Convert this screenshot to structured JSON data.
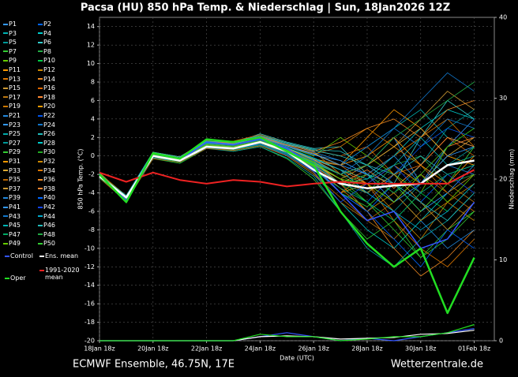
{
  "chart_data": {
    "type": "line",
    "title": "Pacsa  (HU)  850 hPa Temp. & Niederschlag | Sun, 18Jan2026 12Z",
    "ylabel": "850 hPa Temp. (°C)",
    "y2label": "Niederschlag (mm)",
    "xlabel": "Date (UTC)",
    "footer_left": "ECMWF Ensemble, 46.75N, 17E",
    "footer_right": "Wetterzentrale.de",
    "grid": true,
    "xlim": [
      0,
      354
    ],
    "ylim": [
      -20,
      15
    ],
    "y2lim": [
      0,
      40
    ],
    "xticks": [
      {
        "value": 0,
        "label": "18Jan 18z"
      },
      {
        "value": 48,
        "label": "20Jan 18z"
      },
      {
        "value": 96,
        "label": "22Jan 18z"
      },
      {
        "value": 144,
        "label": "24Jan 18z"
      },
      {
        "value": 192,
        "label": "26Jan 18z"
      },
      {
        "value": 240,
        "label": "28Jan 18z"
      },
      {
        "value": 288,
        "label": "30Jan 18z"
      },
      {
        "value": 336,
        "label": "01Feb 18z"
      }
    ],
    "yticks": [
      -20,
      -18,
      -16,
      -14,
      -12,
      -10,
      -8,
      -6,
      -4,
      -2,
      0,
      2,
      4,
      6,
      8,
      10,
      12,
      14
    ],
    "y2ticks": [
      0,
      10,
      20,
      30,
      40
    ],
    "x": [
      0,
      24,
      48,
      72,
      96,
      120,
      144,
      168,
      192,
      216,
      240,
      264,
      288,
      312,
      336
    ],
    "series": [
      {
        "name": "P1",
        "color": "#3399ff",
        "values": [
          -2.1,
          -4.4,
          0.2,
          -0.3,
          1.4,
          1.2,
          1.8,
          0.9,
          -0.5,
          -2,
          -1,
          2,
          -3,
          1,
          4
        ]
      },
      {
        "name": "P2",
        "color": "#0066ff",
        "values": [
          -1.9,
          -4.7,
          -0.2,
          -0.6,
          1.0,
          0.8,
          1.4,
          0.4,
          -1.2,
          -4,
          -6,
          -3,
          -5,
          -2,
          -1
        ]
      },
      {
        "name": "P3",
        "color": "#00b3b3",
        "values": [
          -2.3,
          -4.9,
          0.1,
          -0.2,
          1.6,
          1.3,
          2.2,
          1.1,
          0.2,
          -1,
          1,
          3,
          5,
          2,
          1
        ]
      },
      {
        "name": "P4",
        "color": "#00cccc",
        "values": [
          -2.0,
          -4.3,
          0.4,
          -0.4,
          1.1,
          0.6,
          1.2,
          0,
          -2,
          -5,
          -8,
          -10,
          -7,
          -4,
          -2
        ]
      },
      {
        "name": "P5",
        "color": "#009999",
        "values": [
          -2.2,
          -4.6,
          -0.1,
          -0.5,
          1.3,
          1.1,
          1.7,
          0.7,
          -1,
          -3,
          -2,
          -4,
          -1,
          3,
          5
        ]
      },
      {
        "name": "P6",
        "color": "#33cccc",
        "values": [
          -2.4,
          -4.8,
          0.3,
          -0.1,
          1.5,
          1.4,
          2.4,
          1.5,
          0.8,
          1,
          -2,
          -3,
          2,
          6,
          4
        ]
      },
      {
        "name": "P7",
        "color": "#33cc33",
        "values": [
          -1.8,
          -4.5,
          0,
          -0.7,
          0.9,
          0.5,
          1.0,
          -0.3,
          -2.5,
          -6,
          -9,
          -7,
          -11,
          -8,
          -6
        ]
      },
      {
        "name": "P8",
        "color": "#22aa44",
        "values": [
          -2.1,
          -4.4,
          0.2,
          -0.3,
          1.2,
          0.9,
          1.5,
          0.6,
          -0.8,
          -2,
          -4,
          -1,
          0,
          -3,
          -2
        ]
      },
      {
        "name": "P9",
        "color": "#66cc00",
        "values": [
          -2.0,
          -4.6,
          0.1,
          -0.4,
          1.4,
          1.2,
          1.9,
          1.0,
          0,
          2,
          0,
          -2,
          -4,
          1,
          3
        ]
      },
      {
        "name": "P10",
        "color": "#00cc44",
        "values": [
          -2.2,
          -4.9,
          -0.3,
          -0.8,
          0.8,
          0.7,
          1.3,
          0.2,
          -1.5,
          -3,
          -5,
          -7,
          -4,
          -6,
          -3
        ]
      },
      {
        "name": "P11",
        "color": "#ff9900",
        "values": [
          -2.3,
          -4.7,
          0,
          -0.5,
          1.2,
          1.0,
          1.6,
          0.8,
          -0.3,
          -1,
          2,
          5,
          3,
          0,
          -1
        ]
      },
      {
        "name": "P12",
        "color": "#cc8800",
        "values": [
          -1.9,
          -4.3,
          0.3,
          -0.2,
          1.6,
          1.5,
          2.0,
          1.2,
          0.5,
          -2,
          -3,
          -6,
          -9,
          -5,
          -7
        ]
      },
      {
        "name": "P13",
        "color": "#dd7700",
        "values": [
          -2.1,
          -4.5,
          0.1,
          -0.6,
          1.0,
          0.8,
          1.4,
          0.3,
          -1.2,
          -4,
          -2,
          0,
          2,
          4,
          1
        ]
      },
      {
        "name": "P14",
        "color": "#ee8822",
        "values": [
          -2.0,
          -4.8,
          0.2,
          -0.3,
          1.3,
          1.1,
          1.7,
          0.6,
          -0.6,
          -3,
          -6,
          -10,
          -13,
          -11,
          -8
        ]
      },
      {
        "name": "P15",
        "color": "#cc9933",
        "values": [
          -2.2,
          -4.6,
          -0.2,
          -0.5,
          1.1,
          0.9,
          1.5,
          0.5,
          -1,
          -2.5,
          -1,
          1,
          4,
          7,
          5
        ]
      },
      {
        "name": "P16",
        "color": "#dd6600",
        "values": [
          -2.4,
          -4.4,
          0.4,
          -0.1,
          1.7,
          1.6,
          2.3,
          1.4,
          0.6,
          0,
          1,
          -2,
          -1,
          2,
          0
        ]
      },
      {
        "name": "P17",
        "color": "#bb7711",
        "values": [
          -1.8,
          -4.9,
          0,
          -0.6,
          1.0,
          0.6,
          1.1,
          0.1,
          -1.8,
          -5,
          -7,
          -9,
          -6,
          -3,
          -5
        ]
      },
      {
        "name": "P18",
        "color": "#ff8833",
        "values": [
          -2.1,
          -4.5,
          0.2,
          -0.4,
          1.3,
          1.2,
          1.8,
          0.8,
          -0.4,
          -1.5,
          -3,
          -5,
          -2,
          1,
          2
        ]
      },
      {
        "name": "P19",
        "color": "#cc7700",
        "values": [
          -2.0,
          -4.7,
          0.1,
          -0.3,
          1.4,
          1.3,
          2.0,
          1.0,
          0.2,
          1,
          3,
          1,
          -1,
          -4,
          -2
        ]
      },
      {
        "name": "P20",
        "color": "#ee9900",
        "values": [
          -2.3,
          -4.6,
          -0.1,
          -0.5,
          1.1,
          0.8,
          1.3,
          0.2,
          -1.3,
          -4,
          -3,
          -1,
          -3,
          0,
          -1
        ]
      },
      {
        "name": "P21",
        "color": "#2288dd",
        "values": [
          -2.2,
          -4.4,
          0.3,
          -0.2,
          1.5,
          1.4,
          2.1,
          1.3,
          0.4,
          -0.5,
          -2,
          -4,
          -7,
          -10,
          -8
        ]
      },
      {
        "name": "P22",
        "color": "#0055ee",
        "values": [
          -1.9,
          -4.8,
          0,
          -0.6,
          0.9,
          0.7,
          1.2,
          0.1,
          -1.6,
          -3.5,
          -5,
          -2,
          1,
          3,
          2
        ]
      },
      {
        "name": "P23",
        "color": "#3399ff",
        "values": [
          -2.1,
          -4.5,
          0.2,
          -0.4,
          1.2,
          1.0,
          1.6,
          0.6,
          -0.7,
          -2,
          -1,
          -3,
          -6,
          -4,
          -1
        ]
      },
      {
        "name": "P24",
        "color": "#1177cc",
        "values": [
          -2.0,
          -4.6,
          0.1,
          -0.3,
          1.3,
          1.1,
          1.7,
          0.7,
          -0.5,
          -1,
          1,
          3,
          6,
          9,
          7
        ]
      },
      {
        "name": "P25",
        "color": "#00aaaa",
        "values": [
          -2.4,
          -4.9,
          -0.2,
          -0.7,
          0.8,
          0.5,
          1.0,
          -0.2,
          -2.2,
          -6,
          -10,
          -12,
          -9,
          -7,
          -4
        ]
      },
      {
        "name": "P26",
        "color": "#22bbbb",
        "values": [
          -2.1,
          -4.3,
          0.4,
          -0.1,
          1.6,
          1.5,
          2.2,
          1.4,
          0.7,
          0.5,
          -1,
          -2,
          0,
          -2,
          -1
        ]
      },
      {
        "name": "P27",
        "color": "#009999",
        "values": [
          -2.2,
          -4.7,
          0,
          -0.5,
          1.1,
          0.9,
          1.5,
          0.5,
          -1,
          -3,
          -4,
          -6,
          -3,
          -1,
          1
        ]
      },
      {
        "name": "P28",
        "color": "#00cccc",
        "values": [
          -1.9,
          -4.5,
          0.2,
          -0.3,
          1.3,
          1.2,
          1.8,
          0.9,
          -0.2,
          -1.5,
          -2.5,
          0,
          3,
          5,
          4
        ]
      },
      {
        "name": "P29",
        "color": "#33cc33",
        "values": [
          -2.0,
          -4.6,
          0.1,
          -0.4,
          1.2,
          1.0,
          1.6,
          0.7,
          -0.8,
          -2.5,
          -5,
          -8,
          -11,
          -9,
          -6
        ]
      },
      {
        "name": "P30",
        "color": "#22aa22",
        "values": [
          -2.3,
          -4.8,
          -0.1,
          -0.6,
          1.0,
          0.7,
          1.3,
          0.3,
          -1.4,
          -3,
          -2,
          -4,
          -2,
          1,
          3
        ]
      },
      {
        "name": "P31",
        "color": "#ff9900",
        "values": [
          -2.1,
          -4.4,
          0.3,
          -0.2,
          1.5,
          1.3,
          2.0,
          1.1,
          0.3,
          -1,
          0,
          2,
          -1,
          -3,
          0
        ]
      },
      {
        "name": "P32",
        "color": "#cc8800",
        "values": [
          -2.0,
          -4.7,
          0,
          -0.5,
          1.1,
          0.8,
          1.4,
          0.4,
          -1.1,
          -3.5,
          -6,
          -4,
          -7,
          -5,
          -3
        ]
      },
      {
        "name": "P33",
        "color": "#ddaa33",
        "values": [
          -2.2,
          -4.5,
          0.2,
          -0.3,
          1.3,
          1.2,
          1.8,
          0.8,
          -0.4,
          -2,
          -1,
          1,
          3,
          0,
          2
        ]
      },
      {
        "name": "P34",
        "color": "#dd7700",
        "values": [
          -1.8,
          -4.6,
          0.1,
          -0.4,
          1.2,
          1.0,
          1.6,
          0.6,
          -0.6,
          -1,
          -3,
          -7,
          -10,
          -12,
          -9
        ]
      },
      {
        "name": "P35",
        "color": "#bb6600",
        "values": [
          -2.4,
          -4.9,
          -0.3,
          -0.7,
          0.8,
          0.6,
          1.1,
          0,
          -2,
          -4.5,
          -7,
          -5,
          -2,
          -4,
          -6
        ]
      },
      {
        "name": "P36",
        "color": "#ee8822",
        "values": [
          -2.1,
          -4.4,
          0.4,
          -0.1,
          1.6,
          1.4,
          2.1,
          1.2,
          0.5,
          1.5,
          3,
          4,
          2,
          5,
          6
        ]
      },
      {
        "name": "P37",
        "color": "#cc9933",
        "values": [
          -2.0,
          -4.7,
          0.1,
          -0.4,
          1.2,
          1.0,
          1.5,
          0.5,
          -0.9,
          -2.5,
          -4,
          -2,
          -5,
          -8,
          -5
        ]
      },
      {
        "name": "P38",
        "color": "#ff8833",
        "values": [
          -2.3,
          -4.5,
          0,
          -0.5,
          1.1,
          0.9,
          1.5,
          0.4,
          -1.1,
          -3,
          -1.5,
          -3.5,
          -1,
          2,
          1
        ]
      },
      {
        "name": "P39",
        "color": "#2288dd",
        "values": [
          -1.9,
          -4.8,
          0.2,
          -0.3,
          1.4,
          1.2,
          1.9,
          1.0,
          0.1,
          -0.5,
          -2,
          0,
          -3,
          -1,
          -2
        ]
      },
      {
        "name": "P40",
        "color": "#0066ff",
        "values": [
          -2.2,
          -4.6,
          0,
          -0.6,
          1.0,
          0.8,
          1.3,
          0.3,
          -1.3,
          -4,
          -6,
          -9,
          -12,
          -8,
          -10
        ]
      },
      {
        "name": "P41",
        "color": "#3399ff",
        "values": [
          -2.1,
          -4.4,
          0.3,
          -0.2,
          1.5,
          1.3,
          2.0,
          1.1,
          0.2,
          -1,
          -2,
          -5,
          -3,
          0,
          1
        ]
      },
      {
        "name": "P42",
        "color": "#1144ee",
        "values": [
          -2.0,
          -4.9,
          -0.1,
          -0.5,
          1.1,
          0.7,
          1.2,
          0.2,
          -1.7,
          -5,
          -3,
          -1,
          -4,
          -2,
          -4
        ]
      },
      {
        "name": "P43",
        "color": "#1177cc",
        "values": [
          -2.3,
          -4.5,
          0.1,
          -0.4,
          1.3,
          1.1,
          1.7,
          0.7,
          -0.5,
          -2,
          0,
          3,
          1,
          4,
          3
        ]
      },
      {
        "name": "P44",
        "color": "#00aacc",
        "values": [
          -1.9,
          -4.7,
          0.2,
          -0.3,
          1.4,
          1.2,
          1.8,
          0.9,
          -0.3,
          -1.5,
          -4,
          -6,
          -8,
          -6,
          -3
        ]
      },
      {
        "name": "P45",
        "color": "#00b3b3",
        "values": [
          -2.2,
          -4.6,
          0,
          -0.5,
          1.2,
          1.0,
          1.6,
          0.6,
          -0.8,
          -3,
          -2.5,
          -1,
          2,
          -1,
          0
        ]
      },
      {
        "name": "P46",
        "color": "#22bbbb",
        "values": [
          -2.1,
          -4.3,
          0.4,
          -0.1,
          1.6,
          1.5,
          2.2,
          1.3,
          0.6,
          0,
          -1,
          -3,
          -5,
          -7,
          -4
        ]
      },
      {
        "name": "P47",
        "color": "#00aa66",
        "values": [
          -2.0,
          -4.8,
          0,
          -0.6,
          1.0,
          0.7,
          1.2,
          0.2,
          -1.5,
          -3.5,
          -5,
          -7,
          -4,
          -2,
          -1
        ]
      },
      {
        "name": "P48",
        "color": "#22aa44",
        "values": [
          -2.4,
          -4.5,
          0.1,
          -0.4,
          1.3,
          1.1,
          1.7,
          0.7,
          -0.6,
          -2,
          -1,
          2,
          4,
          6,
          8
        ]
      },
      {
        "name": "P49",
        "color": "#66cc00",
        "values": [
          -2.1,
          -4.6,
          0.2,
          -0.3,
          1.2,
          1.0,
          1.6,
          0.6,
          -0.7,
          -2.5,
          -3,
          -5,
          -2,
          -5,
          -2
        ]
      },
      {
        "name": "P50",
        "color": "#33cc33",
        "values": [
          -2.2,
          -4.7,
          0,
          -0.5,
          1.1,
          0.9,
          1.4,
          0.4,
          -1.2,
          -4,
          -5.5,
          -3,
          -6,
          -3,
          1
        ]
      },
      {
        "name": "Control",
        "color": "#3355ff",
        "width": 1.5,
        "values": [
          -2,
          -4.8,
          0,
          -0.5,
          1.5,
          1.2,
          1.8,
          0.8,
          -1,
          -4,
          -7,
          -6,
          -10,
          -9,
          -5
        ],
        "precip": [
          0,
          0,
          0,
          0,
          0,
          0,
          0.5,
          1,
          0.5,
          0,
          0.3,
          0,
          0.5,
          1,
          1.5
        ]
      },
      {
        "name": "Ens. mean",
        "color": "#ffffff",
        "width": 2.5,
        "values": [
          -2.2,
          -4.5,
          0,
          -0.5,
          1,
          0.8,
          1.5,
          0.5,
          -1.5,
          -3,
          -3.5,
          -3.2,
          -3,
          -1,
          -0.5
        ],
        "precip": [
          0,
          0,
          0,
          0,
          0,
          0,
          0.5,
          0.6,
          0.5,
          0.2,
          0.3,
          0.4,
          0.8,
          0.9,
          1.3
        ]
      },
      {
        "name": "1991-2020 mean",
        "color": "#ee2222",
        "width": 2,
        "values": [
          -1.8,
          -2.8,
          -1.8,
          -2.6,
          -3.0,
          -2.6,
          -2.8,
          -3.3,
          -3.0,
          -2.8,
          -3.0,
          -3.0,
          -3.0,
          -3.0,
          -1.5
        ]
      },
      {
        "name": "Oper",
        "color": "#22dd22",
        "width": 2.5,
        "values": [
          -2,
          -5,
          0.3,
          -0.3,
          1.8,
          1.5,
          2,
          0.5,
          -1,
          -6,
          -9.5,
          -12,
          -10,
          -17,
          -11
        ],
        "precip": [
          0,
          0,
          0,
          0,
          0,
          0,
          0.8,
          0.5,
          0.5,
          0,
          0.2,
          0.5,
          0.5,
          1,
          2
        ]
      }
    ]
  }
}
